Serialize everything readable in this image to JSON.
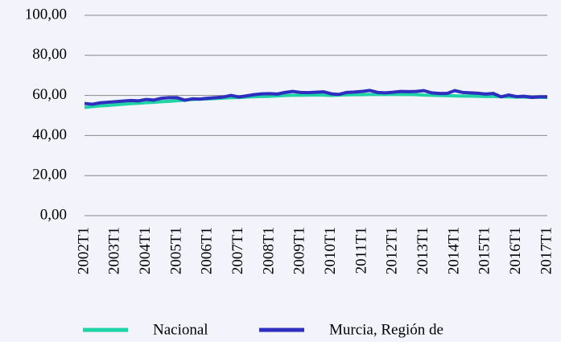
{
  "chart_data": {
    "type": "line",
    "categories": [
      "2002T1",
      null,
      null,
      null,
      "2003T1",
      null,
      null,
      null,
      "2004T1",
      null,
      null,
      null,
      "2005T1",
      null,
      null,
      null,
      "2006T1",
      null,
      null,
      null,
      "2007T1",
      null,
      null,
      null,
      "2008T1",
      null,
      null,
      null,
      "2009T1",
      null,
      null,
      null,
      "2010T1",
      null,
      null,
      null,
      "2011T1",
      null,
      null,
      null,
      "2012T1",
      null,
      null,
      null,
      "2013T1",
      null,
      null,
      null,
      "2014T1",
      null,
      null,
      null,
      "2015T1",
      null,
      null,
      null,
      "2016T1",
      null,
      null,
      null,
      "2017T1"
    ],
    "series": [
      {
        "name": "Nacional",
        "color": "#1fd3a6",
        "values": [
          54.0,
          54.4,
          54.8,
          55.0,
          55.3,
          55.6,
          55.9,
          56.1,
          56.4,
          56.6,
          56.9,
          57.1,
          57.4,
          57.7,
          58.0,
          58.2,
          58.3,
          58.5,
          58.7,
          58.9,
          59.0,
          59.2,
          59.4,
          59.5,
          59.6,
          59.8,
          60.0,
          60.1,
          60.1,
          60.2,
          60.2,
          60.2,
          60.0,
          60.2,
          60.3,
          60.4,
          60.4,
          60.5,
          60.5,
          60.5,
          60.5,
          60.5,
          60.5,
          60.4,
          60.2,
          60.1,
          60.0,
          59.9,
          59.8,
          59.7,
          59.7,
          59.6,
          59.5,
          59.5,
          59.4,
          59.3,
          59.2,
          59.2,
          59.1,
          59.1,
          59.0
        ]
      },
      {
        "name": "Murcia, Región de",
        "color": "#2e2ebf",
        "values": [
          56.0,
          55.6,
          56.3,
          56.6,
          56.9,
          57.2,
          57.5,
          57.3,
          58.0,
          57.7,
          58.6,
          58.9,
          58.9,
          57.6,
          58.3,
          58.2,
          58.6,
          58.9,
          59.2,
          60.0,
          59.2,
          59.8,
          60.4,
          60.8,
          60.9,
          60.7,
          61.5,
          62.0,
          61.5,
          61.4,
          61.6,
          61.8,
          60.8,
          60.5,
          61.5,
          61.7,
          62.0,
          62.5,
          61.5,
          61.3,
          61.6,
          62.0,
          61.9,
          62.0,
          62.4,
          61.3,
          61.0,
          61.0,
          62.4,
          61.5,
          61.3,
          61.1,
          60.7,
          61.0,
          59.3,
          60.2,
          59.4,
          59.6,
          59.0,
          59.3,
          59.3
        ]
      }
    ],
    "ylim": [
      0,
      100
    ],
    "yticks": [
      {
        "value": 0,
        "label": "0,00"
      },
      {
        "value": 20,
        "label": "20,00"
      },
      {
        "value": 40,
        "label": "40,00"
      },
      {
        "value": 60,
        "label": "60,00"
      },
      {
        "value": 80,
        "label": "80,00"
      },
      {
        "value": 100,
        "label": "100,00"
      }
    ],
    "grid": true,
    "legend": "bottom"
  }
}
